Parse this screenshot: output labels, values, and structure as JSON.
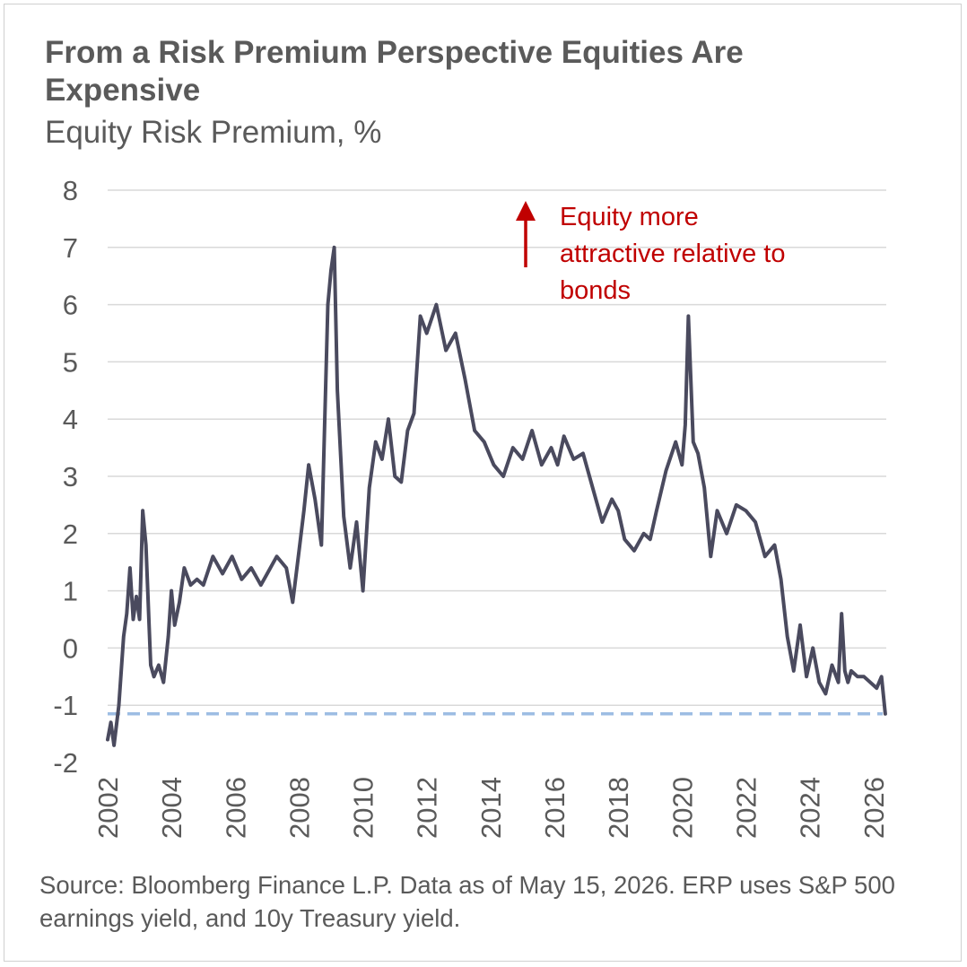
{
  "title": "From a Risk Premium Perspective Equities Are Expensive",
  "subtitle": "Equity Risk Premium, %",
  "source": "Source: Bloomberg Finance L.P. Data as of May 15, 2026. ERP uses S&P 500 earnings yield, and 10y Treasury yield.",
  "annotation": [
    "Equity more",
    "attractive relative to",
    "bonds"
  ],
  "colors": {
    "line": "#4a4a5e",
    "reference": "#9dbde3",
    "annotation": "#c00000",
    "grid": "#d9d9d9",
    "text": "#5a5a5a"
  },
  "chart_data": {
    "type": "line",
    "title": "From a Risk Premium Perspective Equities Are Expensive",
    "ylabel": "Equity Risk Premium, %",
    "xlabel": "",
    "ylim": [
      -2,
      8
    ],
    "xlim": [
      2002,
      2026.4
    ],
    "grid": true,
    "yticks": [
      "8",
      "7",
      "6",
      "5",
      "4",
      "3",
      "2",
      "1",
      "0",
      "-1",
      "-2"
    ],
    "xticks": [
      "2002",
      "2004",
      "2006",
      "2008",
      "2010",
      "2012",
      "2014",
      "2016",
      "2018",
      "2020",
      "2022",
      "2024",
      "2026"
    ],
    "reference_line": {
      "y": -1.15,
      "style": "dashed"
    },
    "series": [
      {
        "x": [
          2002.0,
          2002.1,
          2002.2,
          2002.35,
          2002.5,
          2002.6,
          2002.7,
          2002.8,
          2002.9,
          2003.0,
          2003.1,
          2003.2,
          2003.3,
          2003.35,
          2003.45,
          2003.6,
          2003.75,
          2003.9,
          2004.0,
          2004.1,
          2004.25,
          2004.4,
          2004.6,
          2004.8,
          2005.0,
          2005.3,
          2005.6,
          2005.9,
          2006.2,
          2006.5,
          2006.8,
          2007.0,
          2007.3,
          2007.6,
          2007.8,
          2008.0,
          2008.15,
          2008.3,
          2008.5,
          2008.7,
          2008.9,
          2009.0,
          2009.1,
          2009.2,
          2009.4,
          2009.6,
          2009.8,
          2010.0,
          2010.2,
          2010.4,
          2010.6,
          2010.8,
          2011.0,
          2011.2,
          2011.4,
          2011.6,
          2011.8,
          2012.0,
          2012.3,
          2012.6,
          2012.9,
          2013.2,
          2013.5,
          2013.8,
          2014.1,
          2014.4,
          2014.7,
          2015.0,
          2015.3,
          2015.6,
          2015.9,
          2016.1,
          2016.3,
          2016.6,
          2016.9,
          2017.2,
          2017.5,
          2017.8,
          2018.0,
          2018.2,
          2018.5,
          2018.8,
          2019.0,
          2019.2,
          2019.5,
          2019.8,
          2020.0,
          2020.1,
          2020.2,
          2020.35,
          2020.5,
          2020.7,
          2020.9,
          2021.1,
          2021.4,
          2021.7,
          2022.0,
          2022.3,
          2022.6,
          2022.9,
          2023.1,
          2023.3,
          2023.5,
          2023.7,
          2023.9,
          2024.1,
          2024.3,
          2024.5,
          2024.7,
          2024.9,
          2025.0,
          2025.1,
          2025.2,
          2025.3,
          2025.5,
          2025.7,
          2025.9,
          2026.1,
          2026.25,
          2026.37
        ],
        "values": [
          -1.6,
          -1.3,
          -1.7,
          -1.0,
          0.2,
          0.6,
          1.4,
          0.5,
          0.9,
          0.5,
          2.4,
          1.8,
          0.4,
          -0.3,
          -0.5,
          -0.3,
          -0.6,
          0.2,
          1.0,
          0.4,
          0.8,
          1.4,
          1.1,
          1.2,
          1.1,
          1.6,
          1.3,
          1.6,
          1.2,
          1.4,
          1.1,
          1.3,
          1.6,
          1.4,
          0.8,
          1.7,
          2.4,
          3.2,
          2.6,
          1.8,
          6.0,
          6.6,
          7.0,
          4.5,
          2.3,
          1.4,
          2.2,
          1.0,
          2.8,
          3.6,
          3.3,
          4.0,
          3.0,
          2.9,
          3.8,
          4.1,
          5.8,
          5.5,
          6.0,
          5.2,
          5.5,
          4.7,
          3.8,
          3.6,
          3.2,
          3.0,
          3.5,
          3.3,
          3.8,
          3.2,
          3.5,
          3.2,
          3.7,
          3.3,
          3.4,
          2.8,
          2.2,
          2.6,
          2.4,
          1.9,
          1.7,
          2.0,
          1.9,
          2.4,
          3.1,
          3.6,
          3.2,
          3.9,
          5.8,
          3.6,
          3.4,
          2.8,
          1.6,
          2.4,
          2.0,
          2.5,
          2.4,
          2.2,
          1.6,
          1.8,
          1.2,
          0.2,
          -0.4,
          0.4,
          -0.5,
          0.0,
          -0.6,
          -0.8,
          -0.3,
          -0.6,
          0.6,
          -0.4,
          -0.6,
          -0.4,
          -0.5,
          -0.5,
          -0.6,
          -0.7,
          -0.5,
          -1.15
        ]
      }
    ]
  }
}
